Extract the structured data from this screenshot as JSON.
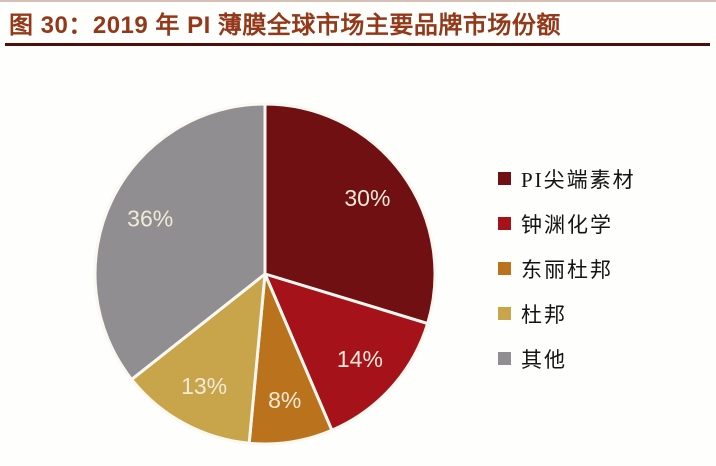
{
  "figure": {
    "title": "图 30：2019 年 PI 薄膜全球市场主要品牌市场份额",
    "title_color": "#93391a",
    "rule_color": "#4d0f08"
  },
  "chart_data": {
    "type": "pie",
    "title": "2019 年 PI 薄膜全球市场主要品牌市场份额",
    "categories": [
      "PI尖端素材",
      "钟渊化学",
      "东丽杜邦",
      "杜邦",
      "其他"
    ],
    "values": [
      30,
      14,
      8,
      13,
      36
    ],
    "labels": [
      "30%",
      "14%",
      "8%",
      "13%",
      "36%"
    ],
    "colors": [
      "#701013",
      "#a6121a",
      "#ba731c",
      "#c8a44a",
      "#908e91"
    ],
    "unit": "percent",
    "start_angle_deg": 0,
    "direction": "clockwise",
    "legend_position": "right",
    "slice_border_color": "#fbf8f1",
    "label_color": "#f2ead9"
  }
}
